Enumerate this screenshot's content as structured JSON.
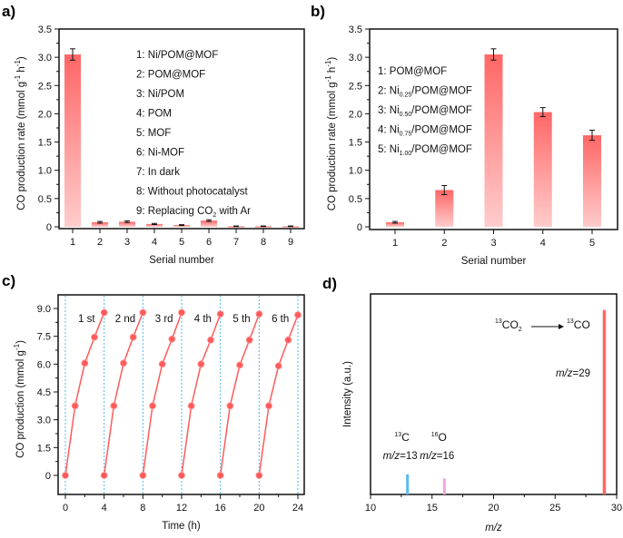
{
  "figure": {
    "panel_labels": [
      "a)",
      "b)",
      "c)",
      "d)"
    ]
  },
  "chart_data": [
    {
      "panel": "a)",
      "type": "bar",
      "title": "",
      "xlabel": "Serial number",
      "ylabel": "CO production rate (mmol g⁻¹ h⁻¹)",
      "ylabel_parts": {
        "main": "CO production rate (mmol g",
        "sup1": "-1",
        "mid": " h",
        "sup2": "-1",
        "end": ")"
      },
      "categories": [
        "1",
        "2",
        "3",
        "4",
        "5",
        "6",
        "7",
        "8",
        "9"
      ],
      "values": [
        3.05,
        0.08,
        0.09,
        0.05,
        0.03,
        0.11,
        0.01,
        0.01,
        0.01
      ],
      "errors": [
        0.1,
        0.015,
        0.015,
        0.01,
        0.008,
        0.015,
        0.005,
        0.005,
        0.005
      ],
      "ylim": [
        0,
        3.5
      ],
      "yticks": [
        "0",
        "0.5",
        "1.0",
        "1.5",
        "2.0",
        "2.5",
        "3.0",
        "3.5"
      ],
      "ytick_values": [
        0,
        0.5,
        1.0,
        1.5,
        2.0,
        2.5,
        3.0,
        3.5
      ],
      "legend": [
        {
          "text": "1: Ni/POM@MOF"
        },
        {
          "text": "2: POM@MOF"
        },
        {
          "text": "3: Ni/POM"
        },
        {
          "text": "4: POM"
        },
        {
          "text": "5: MOF"
        },
        {
          "text": "6: Ni-MOF"
        },
        {
          "text": "7: In dark"
        },
        {
          "text": "8: Without photocatalyst"
        },
        {
          "text": "9: Replacing CO",
          "sub": "2",
          "after": " with Ar"
        }
      ],
      "legend_position": "top-right",
      "bar_color_top": "#ff6666",
      "bar_color_bottom": "#ffcccc",
      "grid": false
    },
    {
      "panel": "b)",
      "type": "bar",
      "title": "",
      "xlabel": "Serial number",
      "ylabel": "CO production rate (mmol g⁻¹ h⁻¹)",
      "ylabel_parts": {
        "main": "CO production rate (mmol g",
        "sup1": "-1",
        "mid": " h",
        "sup2": "-1",
        "end": ")"
      },
      "categories": [
        "1",
        "2",
        "3",
        "4",
        "5"
      ],
      "values": [
        0.08,
        0.65,
        3.05,
        2.03,
        1.62
      ],
      "errors": [
        0.015,
        0.08,
        0.1,
        0.08,
        0.09
      ],
      "ylim": [
        0,
        3.5
      ],
      "yticks": [
        "0",
        "0.5",
        "1.0",
        "1.5",
        "2.0",
        "2.5",
        "3.0",
        "3.5"
      ],
      "ytick_values": [
        0,
        0.5,
        1.0,
        1.5,
        2.0,
        2.5,
        3.0,
        3.5
      ],
      "legend": [
        {
          "text": "1: POM@MOF"
        },
        {
          "text": "2: Ni",
          "sub": "0.25",
          "after": "/POM@MOF"
        },
        {
          "text": "3: Ni",
          "sub": "0.50",
          "after": "/POM@MOF"
        },
        {
          "text": "4: Ni",
          "sub": "0.75",
          "after": "/POM@MOF"
        },
        {
          "text": "5: Ni",
          "sub": "1.00",
          "after": "/POM@MOF"
        }
      ],
      "legend_position": "top-left",
      "bar_color_top": "#ff6666",
      "bar_color_bottom": "#ffcccc",
      "grid": false
    },
    {
      "panel": "c)",
      "type": "line",
      "title": "",
      "xlabel": "Time (h)",
      "ylabel": "CO production (mmol g⁻¹)",
      "ylabel_parts": {
        "main": "CO production (mmol g",
        "sup1": "-1",
        "end": ")"
      },
      "xlim": [
        0,
        24
      ],
      "ylim": [
        -1.0,
        9.6
      ],
      "xticks": [
        "0",
        "4",
        "8",
        "12",
        "16",
        "20",
        "24"
      ],
      "xtick_values": [
        0,
        4,
        8,
        12,
        16,
        20,
        24
      ],
      "yticks": [
        "0",
        "1.5",
        "3.0",
        "4.5",
        "6.0",
        "7.5",
        "9.0"
      ],
      "ytick_values": [
        0,
        1.5,
        3.0,
        4.5,
        6.0,
        7.5,
        9.0
      ],
      "cycle_dividers": [
        0,
        4,
        8,
        12,
        16,
        20,
        24
      ],
      "line_color": "#ff5a5a",
      "divider_color": "#4db8e8",
      "series": [
        {
          "name": "1 st",
          "x": [
            0,
            1,
            2,
            3,
            4
          ],
          "y": [
            0,
            3.75,
            6.05,
            7.45,
            8.78
          ]
        },
        {
          "name": "2 nd",
          "x": [
            4,
            5,
            6,
            7,
            8
          ],
          "y": [
            0,
            3.75,
            6.05,
            7.45,
            8.78
          ]
        },
        {
          "name": "3 rd",
          "x": [
            8,
            9,
            10,
            11,
            12
          ],
          "y": [
            0,
            3.75,
            6.0,
            7.35,
            8.78
          ]
        },
        {
          "name": "4 th",
          "x": [
            12,
            13,
            14,
            15,
            16
          ],
          "y": [
            0,
            3.75,
            6.0,
            7.3,
            8.7
          ]
        },
        {
          "name": "5 th",
          "x": [
            16,
            17,
            18,
            19,
            20
          ],
          "y": [
            0,
            3.75,
            5.95,
            7.3,
            8.7
          ]
        },
        {
          "name": "6 th",
          "x": [
            20,
            21,
            22,
            23,
            24
          ],
          "y": [
            0,
            3.75,
            5.9,
            7.3,
            8.65
          ]
        }
      ],
      "grid": false
    },
    {
      "panel": "d)",
      "type": "bar",
      "title": "",
      "xlabel": "m/z",
      "ylabel": "Intensity (a.u.)",
      "xlim": [
        10,
        30
      ],
      "xticks": [
        "10",
        "15",
        "20",
        "25",
        "30"
      ],
      "xtick_values": [
        10,
        15,
        20,
        25,
        30
      ],
      "ylim": [
        0,
        1
      ],
      "peaks": [
        {
          "x": 13,
          "intensity": 0.1,
          "color": "#5bbcf0",
          "label_sup": "13",
          "label": "C",
          "mz_label": "=13"
        },
        {
          "x": 16,
          "intensity": 0.08,
          "color": "#f3a6df",
          "label_sup": "16",
          "label": "O",
          "mz_label": "=16"
        },
        {
          "x": 29,
          "intensity": 0.92,
          "color": "#ff6666",
          "label_sup": "",
          "label": "",
          "mz_label": "=29"
        }
      ],
      "annotation": {
        "from_sup": "13",
        "from": "CO",
        "from_sub": "2",
        "to_sup": "13",
        "to": "CO"
      },
      "mz_italic": "m/z",
      "grid": false
    }
  ]
}
